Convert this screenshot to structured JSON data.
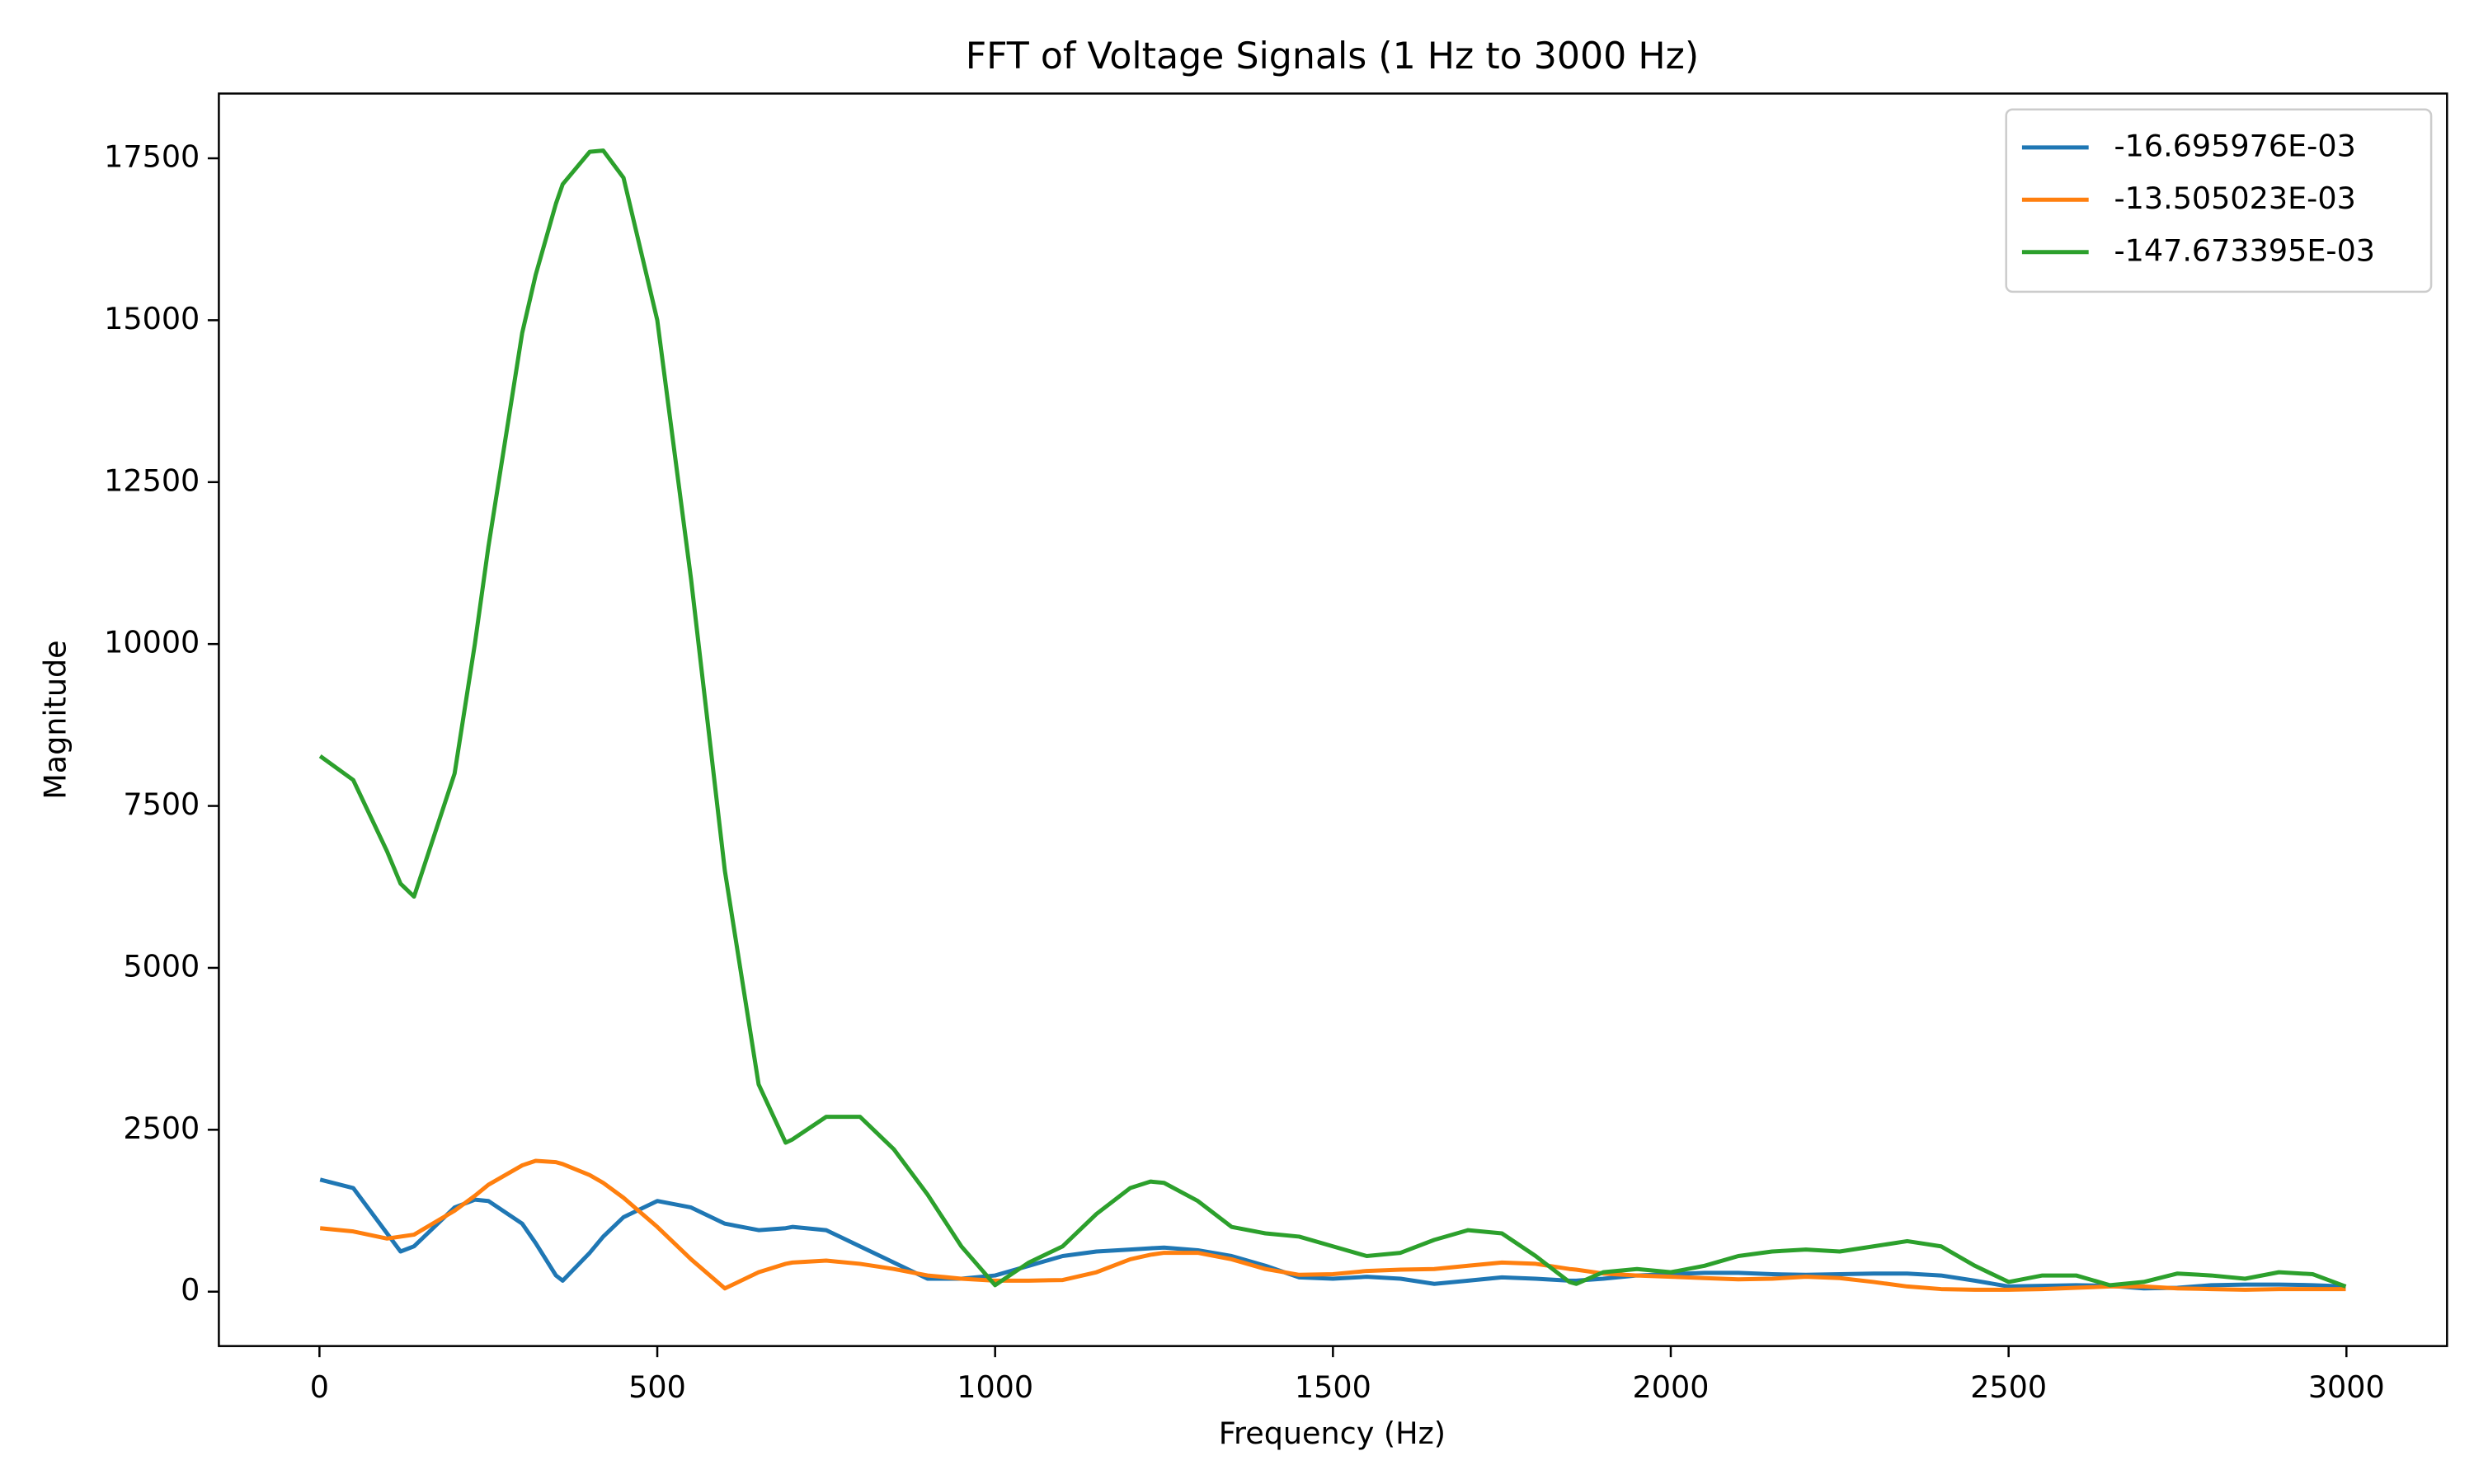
{
  "chart_data": {
    "type": "line",
    "title": "FFT of Voltage Signals (1 Hz to 3000 Hz)",
    "x_label": "Frequency (Hz)",
    "y_label": "Magnitude",
    "x": [
      1,
      50,
      100,
      120,
      140,
      200,
      230,
      250,
      300,
      320,
      350,
      360,
      400,
      420,
      450,
      500,
      550,
      600,
      650,
      690,
      700,
      750,
      800,
      850,
      900,
      950,
      1000,
      1050,
      1100,
      1150,
      1200,
      1230,
      1250,
      1300,
      1350,
      1400,
      1450,
      1500,
      1550,
      1600,
      1650,
      1700,
      1750,
      1800,
      1850,
      1860,
      1900,
      1950,
      2000,
      2050,
      2100,
      2150,
      2200,
      2250,
      2300,
      2350,
      2400,
      2450,
      2500,
      2550,
      2600,
      2650,
      2700,
      2750,
      2800,
      2850,
      2900,
      2950,
      2999
    ],
    "series": [
      {
        "name": "-16.695976E-03",
        "color": "#1f77b4",
        "values": [
          1730,
          1600,
          900,
          620,
          700,
          1300,
          1420,
          1400,
          1050,
          750,
          250,
          170,
          600,
          850,
          1150,
          1400,
          1300,
          1050,
          950,
          980,
          1000,
          950,
          700,
          450,
          200,
          200,
          250,
          400,
          550,
          620,
          650,
          670,
          680,
          640,
          550,
          400,
          220,
          200,
          230,
          200,
          120,
          170,
          220,
          200,
          170,
          170,
          200,
          250,
          270,
          290,
          290,
          270,
          260,
          270,
          280,
          280,
          250,
          170,
          80,
          90,
          100,
          90,
          50,
          60,
          100,
          110,
          110,
          100,
          80
        ]
      },
      {
        "name": "-13.505023E-03",
        "color": "#ff7f0e",
        "values": [
          980,
          930,
          820,
          850,
          880,
          1250,
          1480,
          1650,
          1950,
          2020,
          2000,
          1970,
          1800,
          1680,
          1450,
          1000,
          500,
          50,
          300,
          430,
          450,
          480,
          430,
          350,
          250,
          200,
          170,
          170,
          180,
          300,
          500,
          570,
          600,
          600,
          500,
          350,
          260,
          270,
          320,
          340,
          350,
          400,
          450,
          430,
          350,
          340,
          280,
          250,
          230,
          210,
          190,
          200,
          230,
          210,
          150,
          80,
          40,
          30,
          30,
          40,
          60,
          80,
          80,
          50,
          40,
          30,
          40,
          40,
          40
        ]
      },
      {
        "name": "-147.673395E-03",
        "color": "#2ca02c",
        "values": [
          8270,
          7900,
          6800,
          6300,
          6100,
          8000,
          10000,
          11500,
          14800,
          15700,
          16800,
          17100,
          17600,
          17620,
          17200,
          15000,
          11000,
          6500,
          3200,
          2300,
          2350,
          2700,
          2700,
          2200,
          1500,
          700,
          100,
          450,
          700,
          1200,
          1600,
          1700,
          1680,
          1400,
          1000,
          900,
          850,
          700,
          550,
          600,
          800,
          950,
          900,
          550,
          150,
          120,
          300,
          350,
          300,
          400,
          550,
          620,
          650,
          620,
          700,
          780,
          700,
          400,
          150,
          250,
          250,
          100,
          150,
          280,
          250,
          200,
          300,
          270,
          80
        ]
      }
    ],
    "xlim": [
      -148.9,
      3148.9
    ],
    "ylim": [
      -840,
      18500
    ],
    "xticks": [
      0,
      500,
      1000,
      1500,
      2000,
      2500,
      3000
    ],
    "yticks": [
      0,
      2500,
      5000,
      7500,
      10000,
      12500,
      15000,
      17500
    ],
    "legend": "upper right"
  }
}
